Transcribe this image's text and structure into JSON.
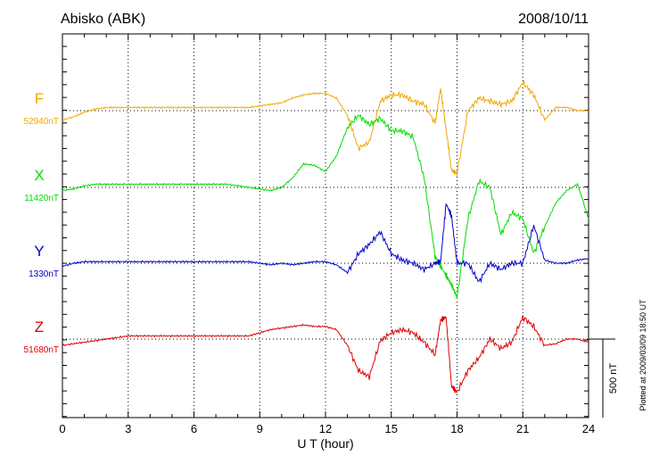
{
  "chart_data": {
    "type": "line",
    "title": "Abisko (ABK)",
    "date": "2008/10/11",
    "xlabel": "U T (hour)",
    "xlim": [
      0,
      24
    ],
    "x_ticks": [
      "0",
      "3",
      "6",
      "9",
      "12",
      "15",
      "18",
      "21",
      "24"
    ],
    "scale_bar_label": "500 nT",
    "scale_bar_nT": 500,
    "footnote": "Plotted at 2009/03/09 18:50 UT",
    "x": [
      0,
      0.5,
      1,
      1.5,
      2,
      2.5,
      3,
      3.5,
      4,
      4.5,
      5,
      5.5,
      6,
      6.5,
      7,
      7.5,
      8,
      8.5,
      9,
      9.5,
      10,
      10.5,
      11,
      11.5,
      12,
      12.5,
      13,
      13.5,
      14,
      14.5,
      15,
      15.5,
      16,
      16.5,
      17,
      17.25,
      17.5,
      17.75,
      18,
      18.5,
      19,
      19.5,
      20,
      20.5,
      21,
      21.5,
      22,
      22.5,
      23,
      23.5,
      24
    ],
    "series": [
      {
        "name": "F",
        "baseline": "52940nT",
        "color": "#f0a800",
        "deviations_nT": [
          -60,
          -40,
          -10,
          10,
          20,
          20,
          20,
          20,
          20,
          20,
          20,
          20,
          20,
          20,
          20,
          20,
          20,
          20,
          30,
          40,
          50,
          80,
          100,
          110,
          110,
          80,
          -30,
          -240,
          -200,
          60,
          100,
          100,
          60,
          40,
          -80,
          140,
          -120,
          -380,
          -400,
          0,
          80,
          60,
          40,
          60,
          180,
          100,
          -60,
          20,
          20,
          0,
          0
        ]
      },
      {
        "name": "X",
        "baseline": "11420nT",
        "color": "#00dd00",
        "deviations_nT": [
          -20,
          -10,
          10,
          20,
          20,
          20,
          20,
          20,
          20,
          20,
          20,
          20,
          20,
          20,
          20,
          20,
          10,
          0,
          -10,
          -20,
          0,
          60,
          150,
          140,
          100,
          200,
          380,
          460,
          400,
          440,
          360,
          360,
          320,
          60,
          -440,
          -500,
          -560,
          -620,
          -700,
          -200,
          40,
          0,
          -300,
          -160,
          -200,
          -420,
          -250,
          -100,
          -20,
          20,
          -200
        ]
      },
      {
        "name": "Y",
        "baseline": "1330nT",
        "color": "#0000cc",
        "deviations_nT": [
          -20,
          0,
          10,
          10,
          10,
          10,
          10,
          10,
          10,
          10,
          10,
          10,
          10,
          10,
          10,
          10,
          10,
          10,
          0,
          -10,
          0,
          -10,
          0,
          10,
          10,
          -10,
          -60,
          60,
          120,
          200,
          60,
          20,
          0,
          -40,
          0,
          10,
          380,
          300,
          0,
          0,
          -120,
          0,
          -40,
          0,
          0,
          240,
          20,
          0,
          0,
          20,
          30
        ]
      },
      {
        "name": "Z",
        "baseline": "51680nT",
        "color": "#dd0000",
        "deviations_nT": [
          -40,
          -30,
          -20,
          -10,
          0,
          10,
          20,
          20,
          20,
          20,
          20,
          20,
          20,
          20,
          20,
          20,
          20,
          20,
          40,
          60,
          70,
          80,
          90,
          80,
          80,
          60,
          -40,
          -200,
          -240,
          -10,
          40,
          60,
          40,
          -20,
          -100,
          120,
          140,
          -300,
          -340,
          -200,
          -120,
          0,
          -60,
          -20,
          140,
          80,
          -40,
          -30,
          0,
          0,
          -20
        ]
      }
    ]
  }
}
